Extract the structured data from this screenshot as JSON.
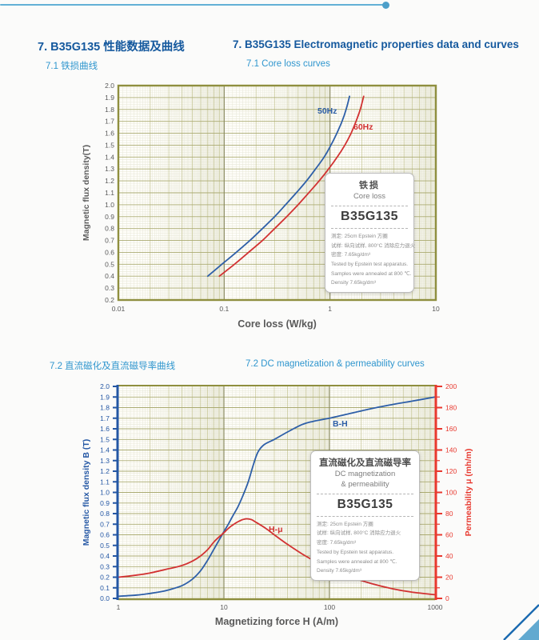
{
  "colors": {
    "accent_line": "#63b1d6",
    "accent_dot": "#4d9fc9",
    "heading_blue": "#15599e",
    "subheading_blue": "#2f96ce",
    "grid_olive": "#8f8f3f",
    "curve_blue": "#2e5fa8",
    "curve_red": "#d23232",
    "corner_fill": "#61a9d0",
    "corner_line": "#1a69b0"
  },
  "header": {
    "title_zh": "7. B35G135 性能数据及曲线",
    "title_en": "7. B35G135 Electromagnetic properties data and curves"
  },
  "section1": {
    "sub_zh": "7.1 铁损曲线",
    "sub_en": "7.1 Core loss curves"
  },
  "section2": {
    "sub_zh": "7.2 直流磁化及直流磁导率曲线",
    "sub_en": "7.2 DC magnetization & permeability curves"
  },
  "infobox1": {
    "title_zh": "铁损",
    "title_en": "Core loss",
    "grade": "B35G135",
    "lines": [
      "测定: 25cm Epstein 方圈",
      "试样: 纵向试样, 800°C 消除应力退火",
      "密度: 7.65kg/dm³",
      "Tested by Epstein test apparatus.",
      "Samples were annealed at 800 ℃.",
      "Density 7.65kg/dm³"
    ]
  },
  "infobox2": {
    "title_zh": "直流磁化及直流磁导率",
    "title_en1": "DC magnetization",
    "title_en2": "& permeability",
    "grade": "B35G135",
    "lines": [
      "测定: 25cm Epstein 方圈",
      "试样: 纵向试样, 800°C 消除应力退火",
      "密度: 7.65kg/dm³",
      "Tested by Epstein test apparatus.",
      "Samples were annealed at 800 ℃.",
      "Density 7.65kg/dm³"
    ]
  },
  "chart_data": [
    {
      "type": "line",
      "title": "Core loss curves",
      "xlabel": "Core loss (W/kg)",
      "ylabel": "Magnetic flux density(T)",
      "x_scale": "log",
      "x_range": [
        0.01,
        10
      ],
      "x_tick_labels": [
        "0.01",
        "0.1",
        "1",
        "10"
      ],
      "y_range": [
        0.2,
        2.0
      ],
      "y_tick_step": 0.1,
      "grid": "log-minor dense, olive",
      "legend_position": "inline labels on curves",
      "series": [
        {
          "name": "50Hz",
          "axis": "left",
          "color": "#2e5fa8",
          "points": [
            [
              0.07,
              0.4
            ],
            [
              0.095,
              0.5
            ],
            [
              0.13,
              0.6
            ],
            [
              0.175,
              0.7
            ],
            [
              0.23,
              0.8
            ],
            [
              0.3,
              0.9
            ],
            [
              0.38,
              1.0
            ],
            [
              0.48,
              1.1
            ],
            [
              0.6,
              1.2
            ],
            [
              0.73,
              1.3
            ],
            [
              0.88,
              1.4
            ],
            [
              1.02,
              1.5
            ],
            [
              1.16,
              1.6
            ],
            [
              1.3,
              1.7
            ],
            [
              1.42,
              1.8
            ],
            [
              1.53,
              1.91
            ]
          ]
        },
        {
          "name": "60Hz",
          "axis": "left",
          "color": "#d23232",
          "points": [
            [
              0.09,
              0.4
            ],
            [
              0.125,
              0.5
            ],
            [
              0.17,
              0.6
            ],
            [
              0.23,
              0.7
            ],
            [
              0.3,
              0.8
            ],
            [
              0.39,
              0.9
            ],
            [
              0.5,
              1.0
            ],
            [
              0.63,
              1.1
            ],
            [
              0.79,
              1.2
            ],
            [
              0.97,
              1.3
            ],
            [
              1.17,
              1.4
            ],
            [
              1.38,
              1.5
            ],
            [
              1.58,
              1.6
            ],
            [
              1.76,
              1.7
            ],
            [
              1.93,
              1.8
            ],
            [
              2.08,
              1.91
            ]
          ]
        }
      ]
    },
    {
      "type": "line",
      "title": "DC magnetization & permeability curves",
      "xlabel": "Magnetizing force H (A/m)",
      "ylabel_left": "Magnetic flux density B (T)",
      "ylabel_right": "Permeability μ (mh/m)",
      "x_scale": "log",
      "x_range": [
        1,
        1000
      ],
      "x_tick_labels": [
        "1",
        "10",
        "100",
        "1000"
      ],
      "y_left_range": [
        0.0,
        2.0
      ],
      "y_left_tick_step": 0.1,
      "y_right_range": [
        0,
        200
      ],
      "y_right_tick_step": 20,
      "grid": "log-minor dense, olive",
      "legend_position": "inline labels on curves",
      "series": [
        {
          "name": "B-H",
          "axis": "left",
          "color": "#2e5fa8",
          "points": [
            [
              1,
              0.02
            ],
            [
              1.5,
              0.032
            ],
            [
              2,
              0.047
            ],
            [
              2.5,
              0.062
            ],
            [
              3,
              0.08
            ],
            [
              4,
              0.12
            ],
            [
              5,
              0.18
            ],
            [
              6,
              0.26
            ],
            [
              7,
              0.36
            ],
            [
              8,
              0.46
            ],
            [
              9,
              0.55
            ],
            [
              10,
              0.63
            ],
            [
              11,
              0.7
            ],
            [
              12,
              0.77
            ],
            [
              13.5,
              0.86
            ],
            [
              15,
              0.96
            ],
            [
              17,
              1.1
            ],
            [
              19,
              1.26
            ],
            [
              21,
              1.38
            ],
            [
              24,
              1.45
            ],
            [
              30,
              1.5
            ],
            [
              40,
              1.57
            ],
            [
              55,
              1.64
            ],
            [
              70,
              1.67
            ],
            [
              100,
              1.7
            ],
            [
              150,
              1.74
            ],
            [
              250,
              1.79
            ],
            [
              400,
              1.83
            ],
            [
              600,
              1.86
            ],
            [
              1000,
              1.9
            ]
          ]
        },
        {
          "name": "H-μ",
          "axis": "right",
          "color": "#d23232",
          "points": [
            [
              1,
              20
            ],
            [
              1.5,
              22
            ],
            [
              2,
              24
            ],
            [
              3,
              28
            ],
            [
              4,
              31
            ],
            [
              5,
              35
            ],
            [
              6,
              40
            ],
            [
              7,
              46
            ],
            [
              8,
              53
            ],
            [
              9,
              58
            ],
            [
              10,
              62
            ],
            [
              11,
              66
            ],
            [
              12,
              69
            ],
            [
              14,
              73
            ],
            [
              16,
              75
            ],
            [
              18,
              74.5
            ],
            [
              20,
              72
            ],
            [
              25,
              66
            ],
            [
              30,
              60
            ],
            [
              40,
              51
            ],
            [
              55,
              42
            ],
            [
              70,
              36
            ],
            [
              100,
              28
            ],
            [
              150,
              21
            ],
            [
              250,
              14
            ],
            [
              400,
              9
            ],
            [
              600,
              6
            ],
            [
              1000,
              3.5
            ]
          ]
        }
      ]
    }
  ]
}
